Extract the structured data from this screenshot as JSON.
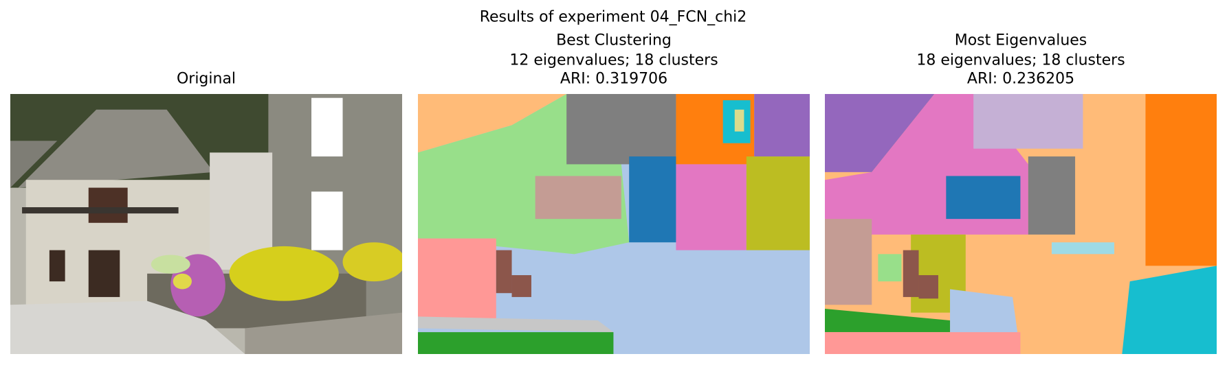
{
  "figure": {
    "title": "Results of experiment 04_FCN_chi2",
    "panels": [
      {
        "title_lines": [
          "Original"
        ]
      },
      {
        "title_lines": [
          "Best Clustering",
          "12 eigenvalues; 18 clusters",
          "ARI: 0.319706"
        ]
      },
      {
        "title_lines": [
          "Most Eigenvalues",
          "18 eigenvalues; 18 clusters",
          "ARI: 0.236205"
        ]
      }
    ]
  }
}
